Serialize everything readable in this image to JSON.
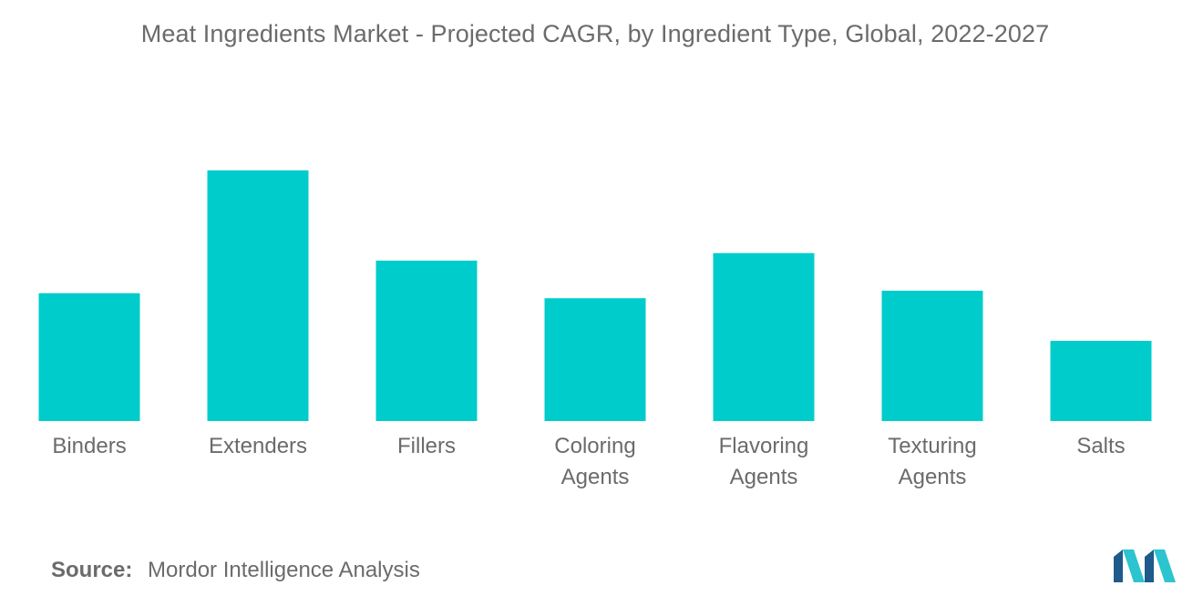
{
  "chart_data": {
    "type": "bar",
    "title": "Meat Ingredients Market - Projected CAGR, by Ingredient Type, Global, 2022-2027",
    "categories": [
      [
        "Binders"
      ],
      [
        "Extenders"
      ],
      [
        "Fillers"
      ],
      [
        "Coloring",
        "Agents"
      ],
      [
        "Flavoring",
        "Agents"
      ],
      [
        "Texturing",
        "Agents"
      ],
      [
        "Salts"
      ]
    ],
    "values": [
      5.1,
      10.0,
      6.4,
      4.9,
      6.7,
      5.2,
      3.2
    ],
    "ylim": [
      0,
      10
    ],
    "bar_color": "#00cccc",
    "grid": false,
    "legend": false
  },
  "source": {
    "label": "Source:",
    "text": "Mordor Intelligence Analysis"
  },
  "logo": {
    "icon": "mordor-intelligence-logo-icon",
    "colors": [
      "#1e5a8a",
      "#2bc4cf"
    ]
  }
}
